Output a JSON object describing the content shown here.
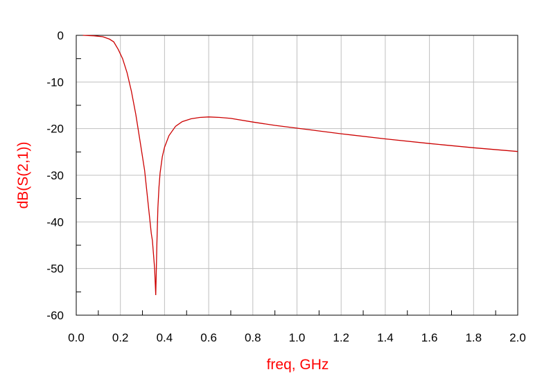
{
  "colors": {
    "trace": "#cc0000",
    "axis_label": "#ff0000",
    "grid": "#bfbfbf",
    "frame": "#000000"
  },
  "chart_data": {
    "type": "line",
    "title": "",
    "xlabel": "freq, GHz",
    "ylabel": "dB(S(2,1))",
    "xlim": [
      0.0,
      2.0
    ],
    "ylim": [
      -60,
      0
    ],
    "x_ticks": [
      0.0,
      0.2,
      0.4,
      0.6,
      0.8,
      1.0,
      1.2,
      1.4,
      1.6,
      1.8,
      2.0
    ],
    "x_tick_labels": [
      "0.0",
      "0.2",
      "0.4",
      "0.6",
      "0.8",
      "1.0",
      "1.2",
      "1.4",
      "1.6",
      "1.8",
      "2.0"
    ],
    "y_ticks": [
      0,
      -10,
      -20,
      -30,
      -40,
      -50,
      -60
    ],
    "y_tick_labels": [
      "0",
      "-10",
      "-20",
      "-30",
      "-40",
      "-50",
      "-60"
    ],
    "grid": true,
    "legend": "none",
    "series": [
      {
        "x": [
          0.03,
          0.08,
          0.12,
          0.15,
          0.17,
          0.19,
          0.21,
          0.23,
          0.25,
          0.27,
          0.29,
          0.31,
          0.32,
          0.33,
          0.34,
          0.345,
          0.35,
          0.355,
          0.36,
          0.362,
          0.365,
          0.37,
          0.375,
          0.38,
          0.39,
          0.4,
          0.42,
          0.45,
          0.48,
          0.52,
          0.56,
          0.6,
          0.65,
          0.7,
          0.8,
          0.9,
          1.0,
          1.2,
          1.4,
          1.6,
          1.8,
          2.0
        ],
        "y": [
          0.0,
          -0.1,
          -0.3,
          -0.8,
          -1.4,
          -3.0,
          -5.0,
          -8.0,
          -12.0,
          -17.0,
          -23.0,
          -29.0,
          -33.5,
          -38.0,
          -42.5,
          -44.0,
          -47.0,
          -50.0,
          -55.7,
          -52.0,
          -45.0,
          -37.0,
          -32.5,
          -29.5,
          -26.0,
          -24.0,
          -21.5,
          -19.5,
          -18.5,
          -17.9,
          -17.6,
          -17.5,
          -17.6,
          -17.8,
          -18.6,
          -19.3,
          -19.9,
          -21.1,
          -22.2,
          -23.2,
          -24.1,
          -24.9
        ]
      }
    ]
  }
}
